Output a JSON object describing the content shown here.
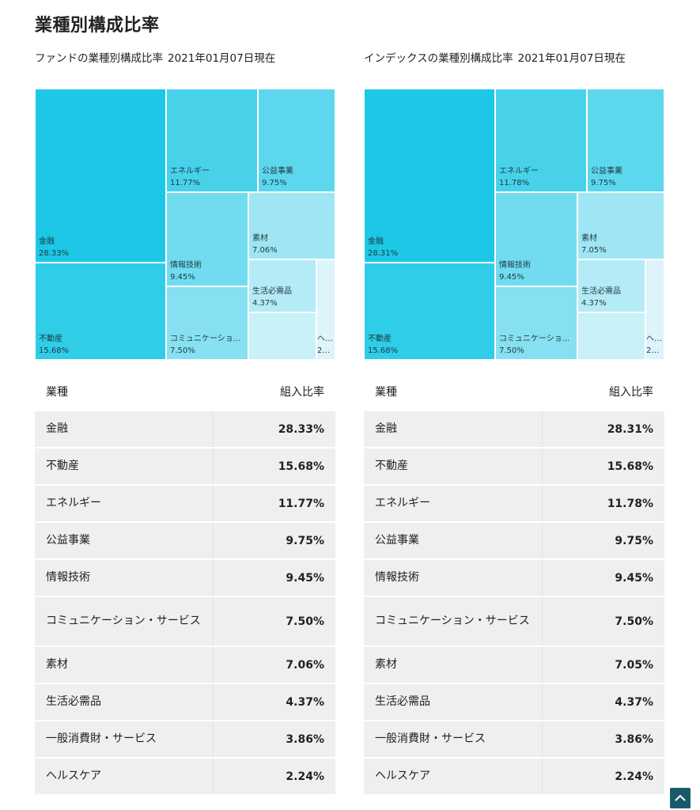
{
  "page_title": "業種別構成比率",
  "table_header": {
    "name": "業種",
    "ratio": "組入比率"
  },
  "chart_data": [
    {
      "type": "treemap",
      "title": "ファンドの業種別構成比率",
      "date": "2021年01月07日現在",
      "items": [
        {
          "name": "金融",
          "label": "28.33%",
          "value": 28.33,
          "color": "#1cc8e6"
        },
        {
          "name": "不動産",
          "label": "15.68%",
          "value": 15.68,
          "color": "#2fcde8"
        },
        {
          "name": "エネルギー",
          "label": "11.77%",
          "value": 11.77,
          "color": "#47d2ea"
        },
        {
          "name": "公益事業",
          "label": "9.75%",
          "value": 9.75,
          "color": "#5dd7ee"
        },
        {
          "name": "情報技術",
          "label": "9.45%",
          "value": 9.45,
          "color": "#71dcef"
        },
        {
          "name": "コミュニケーション・サービス",
          "label": "7.50%",
          "value": 7.5,
          "color": "#87e0f1"
        },
        {
          "name": "素材",
          "label": "7.06%",
          "value": 7.06,
          "color": "#9ee6f3"
        },
        {
          "name": "生活必需品",
          "label": "4.37%",
          "value": 4.37,
          "color": "#b4ebf6"
        },
        {
          "name": "一般消費財・サービス",
          "label": "3.86%",
          "value": 3.86,
          "color": "#c8f1f8"
        },
        {
          "name": "ヘルスケア",
          "label": "2.24%",
          "value": 2.24,
          "color": "#dcf4fa"
        }
      ],
      "treemap_labels": {
        "一般消費財・サービス": null,
        "ヘルスケア": {
          "name": "ヘ...",
          "value": "2...."
        },
        "コミュニケーション・サービス": {
          "name": "コミュニケーショ...",
          "value": "7.50%"
        }
      }
    },
    {
      "type": "treemap",
      "title": "インデックスの業種別構成比率",
      "date": "2021年01月07日現在",
      "items": [
        {
          "name": "金融",
          "label": "28.31%",
          "value": 28.31,
          "color": "#1cc8e6"
        },
        {
          "name": "不動産",
          "label": "15.68%",
          "value": 15.68,
          "color": "#2fcde8"
        },
        {
          "name": "エネルギー",
          "label": "11.78%",
          "value": 11.78,
          "color": "#47d2ea"
        },
        {
          "name": "公益事業",
          "label": "9.75%",
          "value": 9.75,
          "color": "#5dd7ee"
        },
        {
          "name": "情報技術",
          "label": "9.45%",
          "value": 9.45,
          "color": "#71dcef"
        },
        {
          "name": "コミュニケーション・サービス",
          "label": "7.50%",
          "value": 7.5,
          "color": "#87e0f1"
        },
        {
          "name": "素材",
          "label": "7.05%",
          "value": 7.05,
          "color": "#9ee6f3"
        },
        {
          "name": "生活必需品",
          "label": "4.37%",
          "value": 4.37,
          "color": "#b4ebf6"
        },
        {
          "name": "一般消費財・サービス",
          "label": "3.86%",
          "value": 3.86,
          "color": "#c8f1f8"
        },
        {
          "name": "ヘルスケア",
          "label": "2.24%",
          "value": 2.24,
          "color": "#dcf4fa"
        }
      ],
      "treemap_labels": {
        "一般消費財・サービス": null,
        "ヘルスケア": {
          "name": "ヘ...",
          "value": "2...."
        },
        "コミュニケーション・サービス": {
          "name": "コミュニケーショ...",
          "value": "7.50%"
        }
      }
    }
  ],
  "tables": [
    {
      "rows": [
        {
          "name": "金融",
          "ratio": "28.33%"
        },
        {
          "name": "不動産",
          "ratio": "15.68%"
        },
        {
          "name": "エネルギー",
          "ratio": "11.77%"
        },
        {
          "name": "公益事業",
          "ratio": "9.75%"
        },
        {
          "name": "情報技術",
          "ratio": "9.45%"
        },
        {
          "name": "コミュニケーション・サービス",
          "ratio": "7.50%"
        },
        {
          "name": "素材",
          "ratio": "7.06%"
        },
        {
          "name": "生活必需品",
          "ratio": "4.37%"
        },
        {
          "name": "一般消費財・サービス",
          "ratio": "3.86%"
        },
        {
          "name": "ヘルスケア",
          "ratio": "2.24%"
        }
      ]
    },
    {
      "rows": [
        {
          "name": "金融",
          "ratio": "28.31%"
        },
        {
          "name": "不動産",
          "ratio": "15.68%"
        },
        {
          "name": "エネルギー",
          "ratio": "11.78%"
        },
        {
          "name": "公益事業",
          "ratio": "9.75%"
        },
        {
          "name": "情報技術",
          "ratio": "9.45%"
        },
        {
          "name": "コミュニケーション・サービス",
          "ratio": "7.50%"
        },
        {
          "name": "素材",
          "ratio": "7.05%"
        },
        {
          "name": "生活必需品",
          "ratio": "4.37%"
        },
        {
          "name": "一般消費財・サービス",
          "ratio": "3.86%"
        },
        {
          "name": "ヘルスケア",
          "ratio": "2.24%"
        }
      ]
    }
  ],
  "scroll_top_icon": "chevron-up-icon"
}
